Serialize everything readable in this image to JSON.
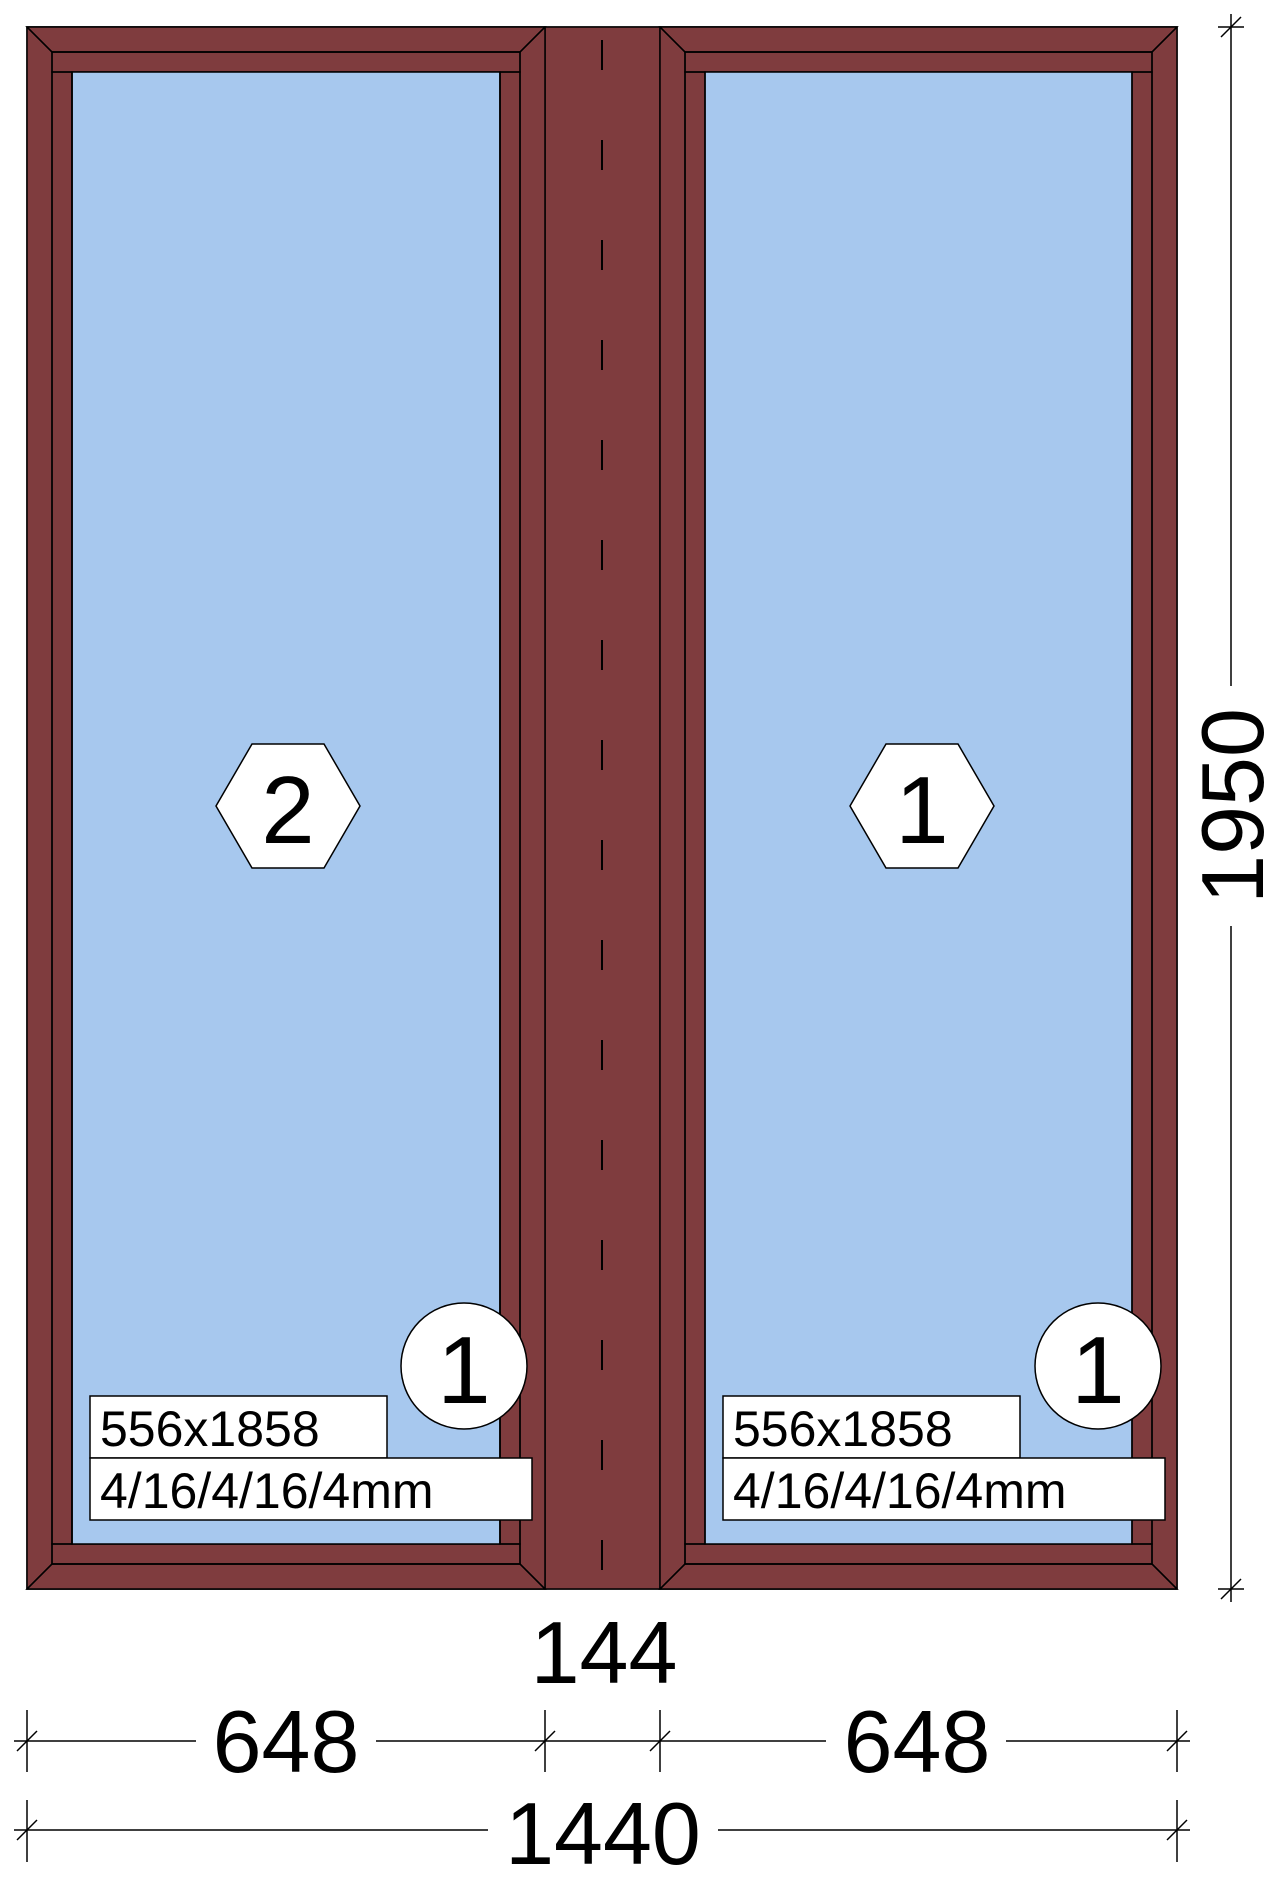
{
  "window": {
    "frame_color": "#7f3c3e",
    "glass_color": "#a7c8ee",
    "sashes": [
      {
        "id": "left",
        "opening_marker": "2",
        "glass_number": "1",
        "glass_size": "556x1858",
        "glass_formula": "4/16/4/16/4mm"
      },
      {
        "id": "right",
        "opening_marker": "1",
        "glass_number": "1",
        "glass_size": "556x1858",
        "glass_formula": "4/16/4/16/4mm"
      }
    ]
  },
  "dimensions": {
    "mullion_width": "144",
    "left_width": "648",
    "right_width": "648",
    "total_width": "1440",
    "total_height": "1950"
  }
}
